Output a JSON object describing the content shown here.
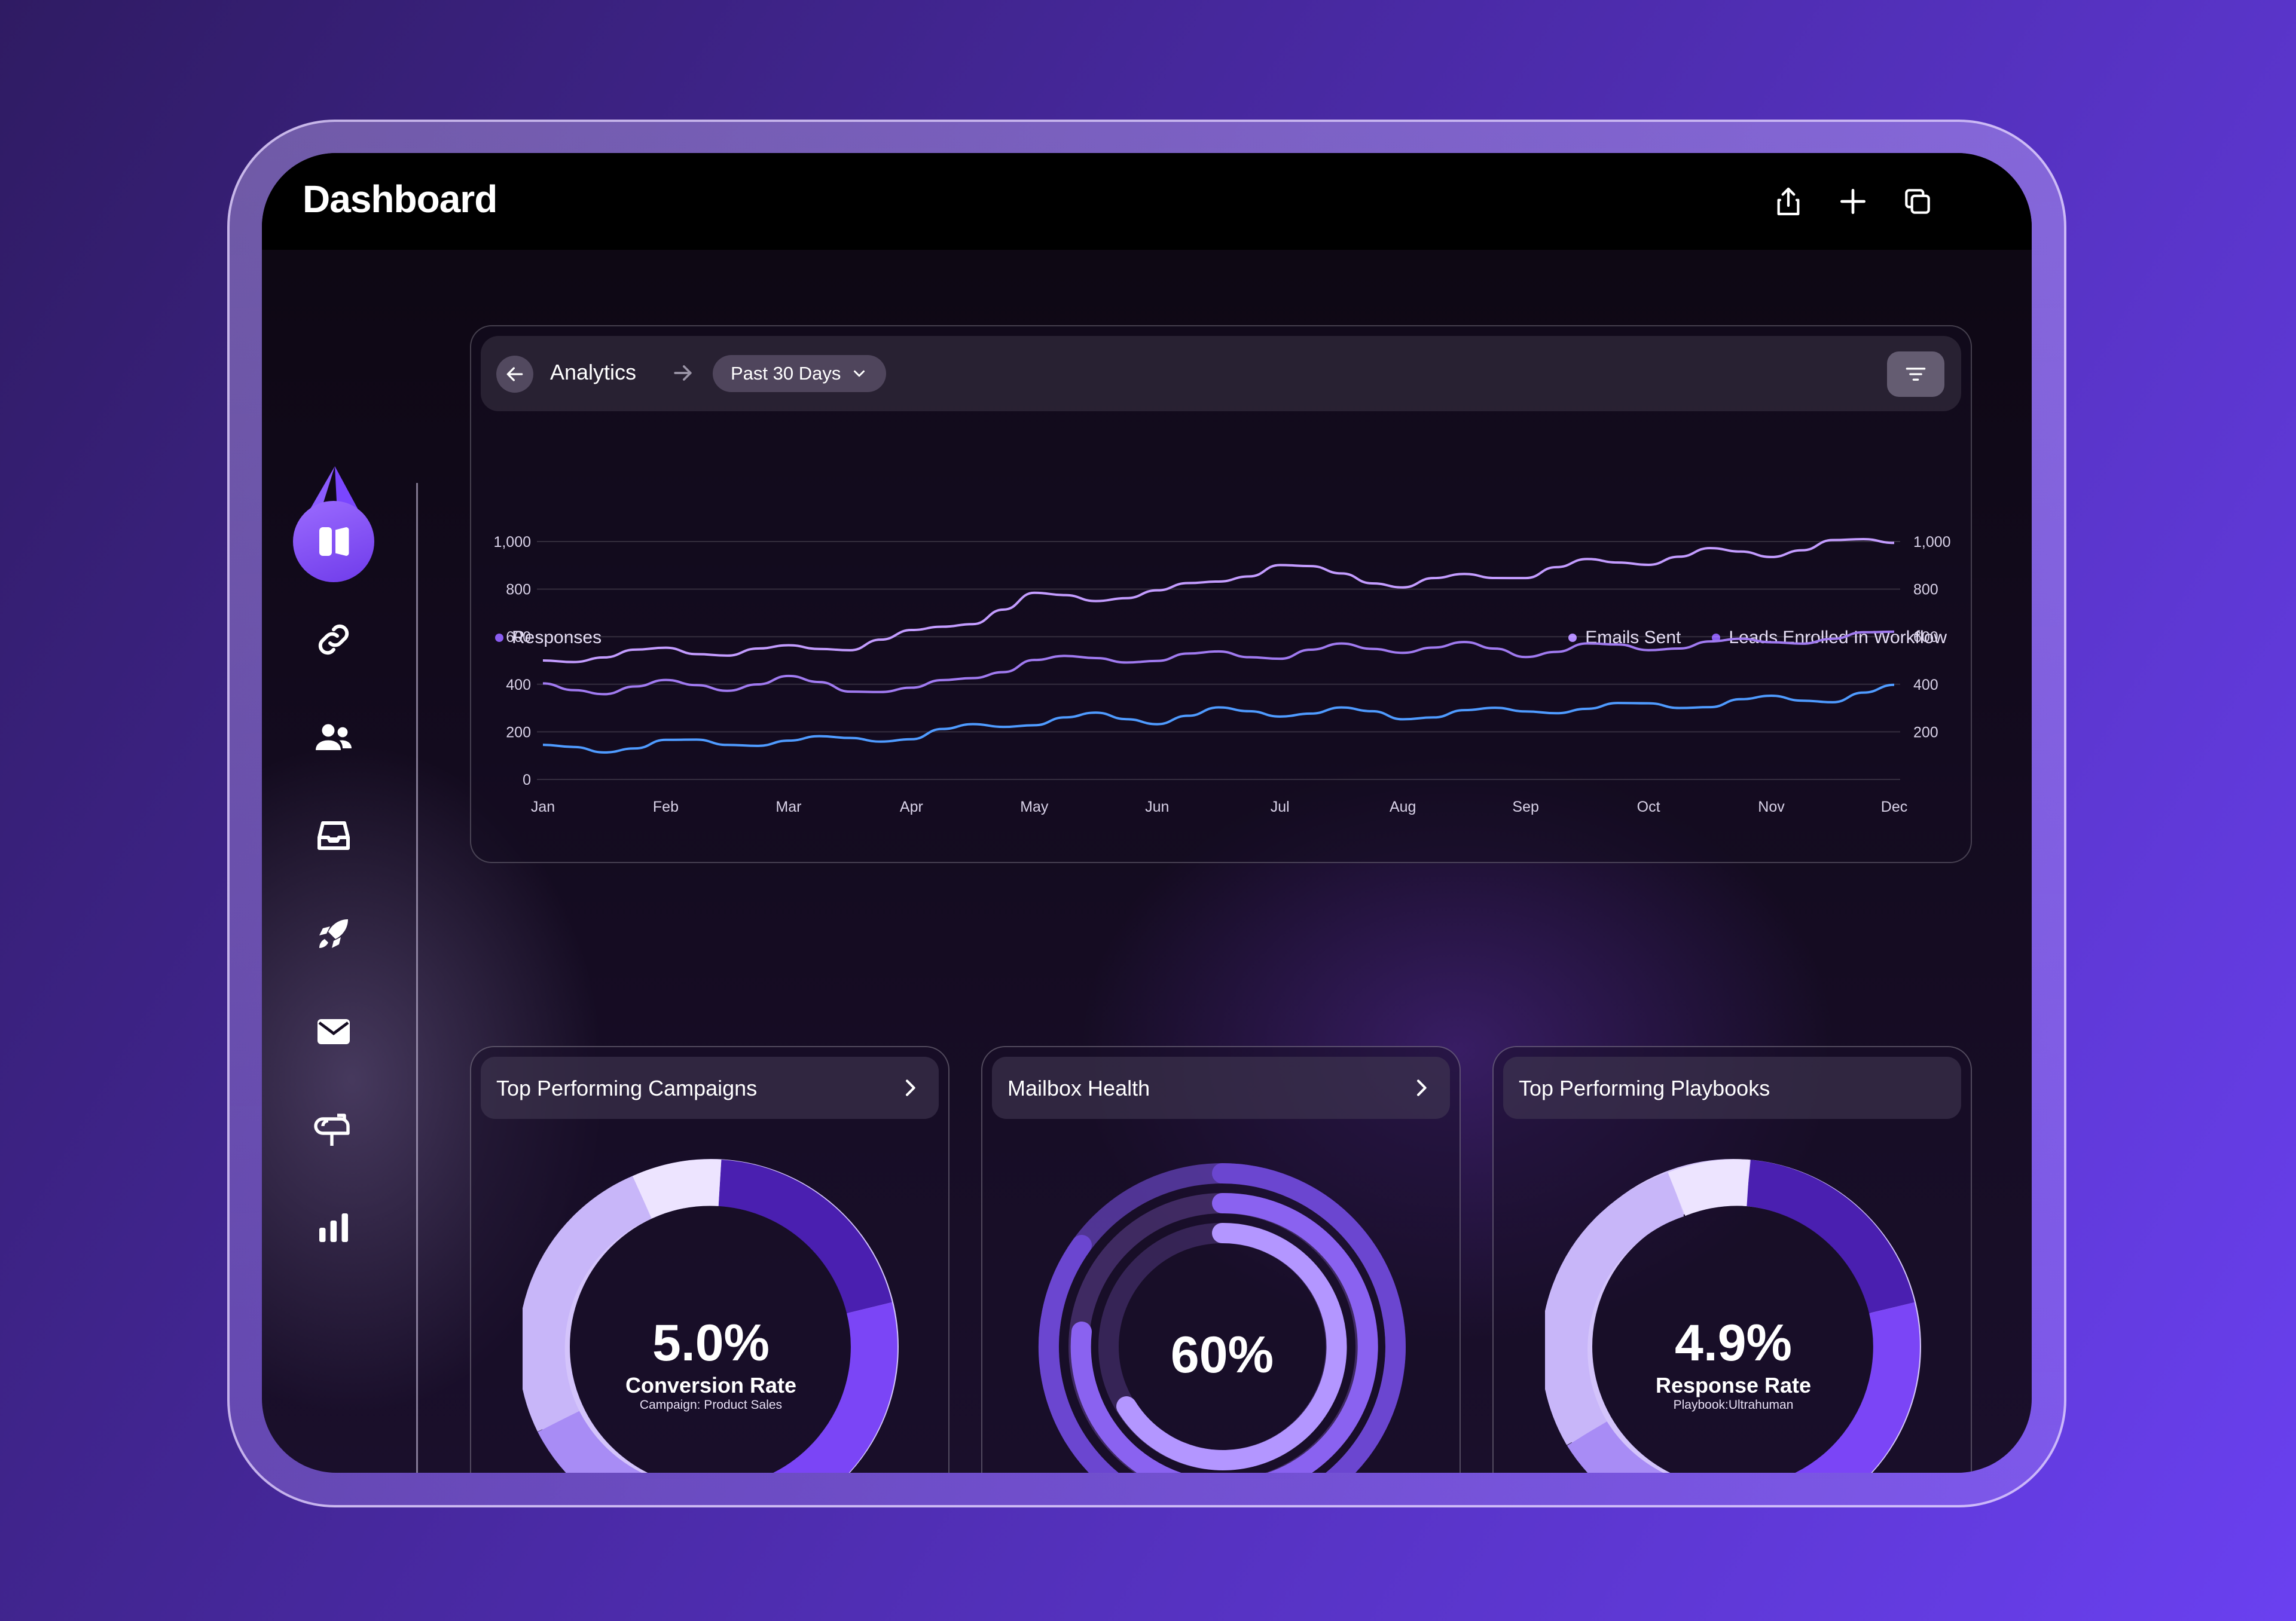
{
  "header": {
    "title": "Dashboard",
    "icons": [
      "share-icon",
      "plus-icon",
      "copy-icon"
    ]
  },
  "sidebar": {
    "items": [
      {
        "name": "dashboard",
        "icon": "dashboard-icon",
        "active": true
      },
      {
        "name": "links",
        "icon": "link-icon",
        "active": false
      },
      {
        "name": "contacts",
        "icon": "users-icon",
        "active": false
      },
      {
        "name": "inbox",
        "icon": "inbox-icon",
        "active": false
      },
      {
        "name": "campaigns",
        "icon": "rocket-icon",
        "active": false
      },
      {
        "name": "email",
        "icon": "mail-icon",
        "active": false
      },
      {
        "name": "mailbox",
        "icon": "mailbox-icon",
        "active": false
      },
      {
        "name": "reports",
        "icon": "bar-chart-icon",
        "active": false
      }
    ]
  },
  "analytics": {
    "breadcrumb": "Analytics",
    "range": "Past 30 Days",
    "legend_left": "Responses",
    "legend_right": [
      "Emails Sent",
      "Leads Enrolled In Workflow"
    ]
  },
  "colors": {
    "accent": "#7c4dff",
    "emails": "#b48cff",
    "leads": "#8a5cf0",
    "responses": "#4f9bff"
  },
  "chart_data": {
    "type": "line",
    "categories": [
      "Jan",
      "Feb",
      "Mar",
      "Apr",
      "May",
      "Jun",
      "Jul",
      "Aug",
      "Sep",
      "Oct",
      "Nov",
      "Dec"
    ],
    "yticks_left": [
      "1,000",
      "800",
      "600",
      "400",
      "200",
      "0"
    ],
    "yticks_right": [
      "1,000",
      "800",
      "600",
      "400",
      "200"
    ],
    "ylim": [
      0,
      1000
    ],
    "series": [
      {
        "name": "Emails Sent",
        "color": "#c39cff",
        "values": [
          500,
          540,
          540,
          600,
          760,
          780,
          900,
          820,
          870,
          930,
          960,
          1010
        ]
      },
      {
        "name": "Leads Enrolled In Workflow",
        "color": "#a07af0",
        "values": [
          380,
          390,
          410,
          370,
          500,
          510,
          530,
          560,
          540,
          560,
          580,
          610
        ]
      },
      {
        "name": "Responses",
        "color": "#4f9bff",
        "values": [
          120,
          150,
          160,
          180,
          250,
          260,
          290,
          270,
          290,
          310,
          330,
          370
        ]
      }
    ]
  },
  "cards": [
    {
      "title": "Top Performing Campaigns",
      "has_chevron": true,
      "value": "5.0%",
      "label": "Conversion Rate",
      "sub": "Campaign: Product Sales"
    },
    {
      "title": "Mailbox Health",
      "has_chevron": true,
      "value": "60%"
    },
    {
      "title": "Top Performing Playbooks",
      "has_chevron": false,
      "value": "4.9%",
      "label": "Response Rate",
      "sub": "Playbook:Ultrahuman"
    }
  ]
}
